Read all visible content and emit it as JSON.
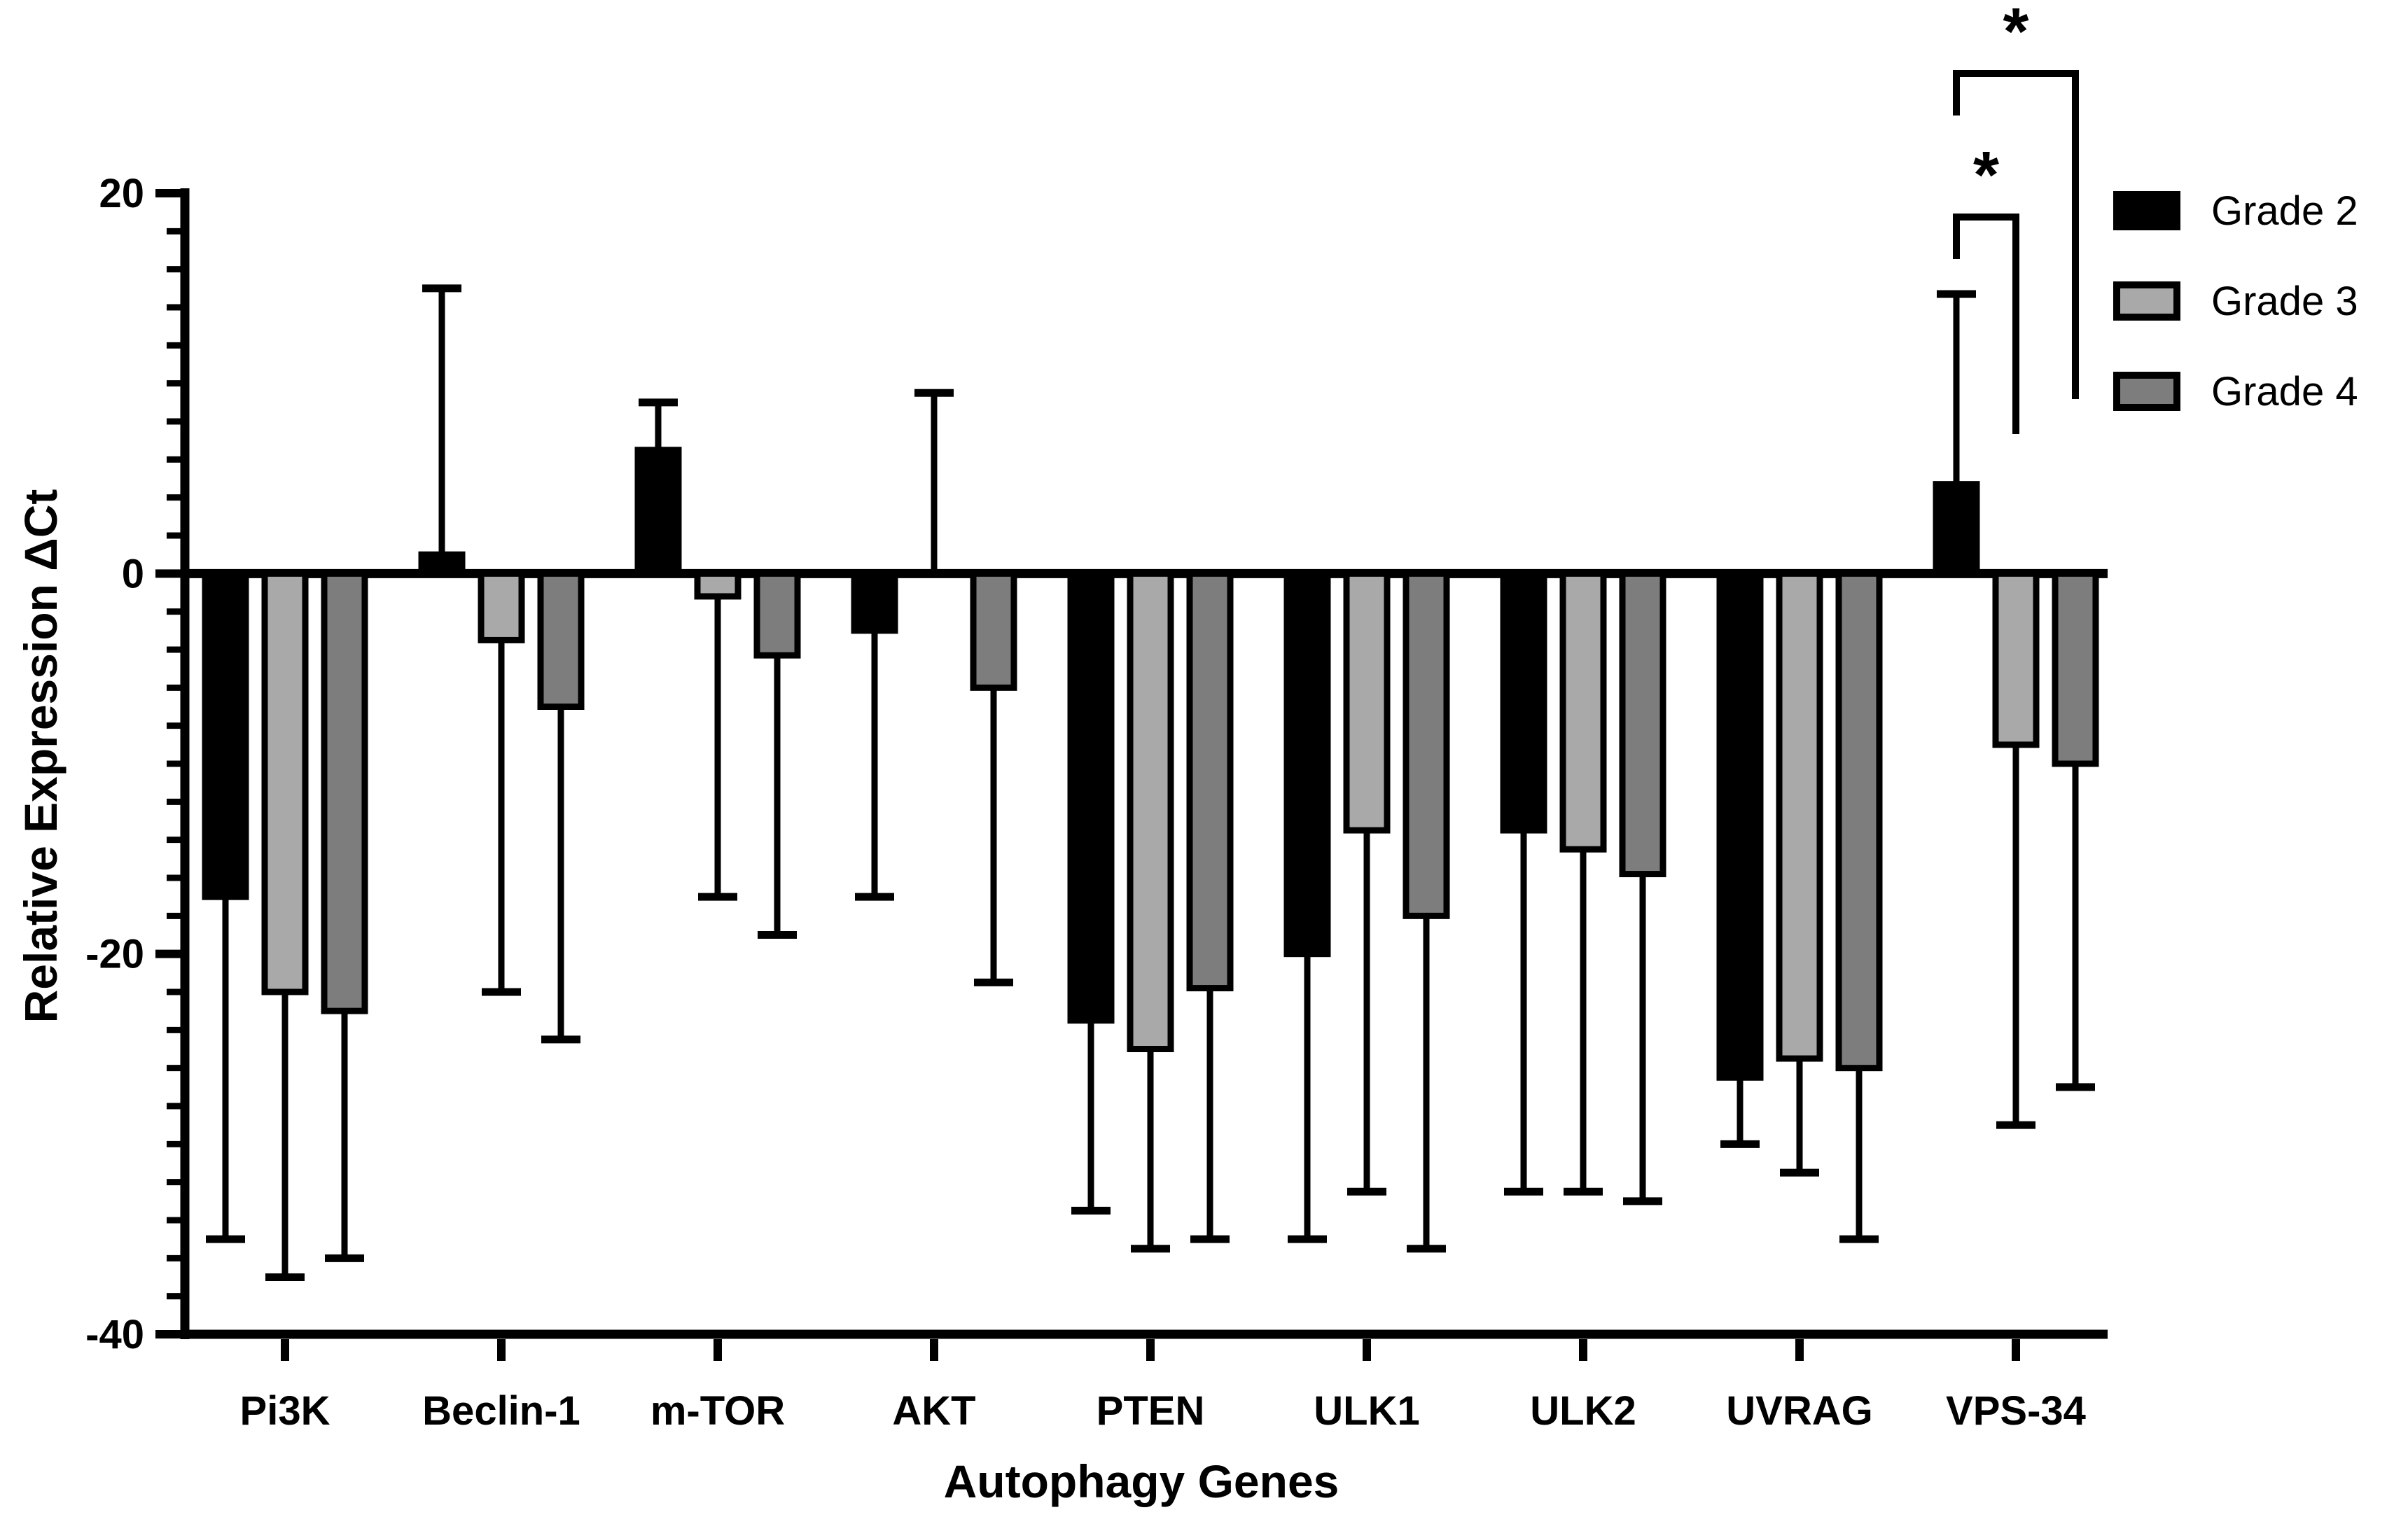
{
  "axes": {
    "y_label": "Relative Expression ΔCt",
    "x_label": "Autophagy Genes",
    "y_tick_labels": [
      "20",
      "0",
      "-20",
      "-40"
    ],
    "y_tick_values": [
      20,
      0,
      -20,
      -40
    ],
    "y_minor_tick_step": 2,
    "ylim": [
      -40,
      20
    ]
  },
  "legend": {
    "items": [
      {
        "label": "Grade 2",
        "fill": "#000000",
        "style": "solid"
      },
      {
        "label": "Grade 3",
        "fill": "#a9a9a9",
        "style": "outlined"
      },
      {
        "label": "Grade 4",
        "fill": "#7d7d7d",
        "style": "outlined"
      }
    ]
  },
  "colors": {
    "axis": "#000000",
    "bar_outline": "#000000",
    "grade2": "#000000",
    "grade3": "#a9a9a9",
    "grade4": "#7d7d7d",
    "background": "#ffffff"
  },
  "chart_data": {
    "type": "bar",
    "title": "",
    "xlabel": "Autophagy Genes",
    "ylabel": "Relative Expression ΔCt",
    "ylim": [
      -40,
      20
    ],
    "grid": false,
    "legend_position": "right-top",
    "categories": [
      "Pi3K",
      "Beclin-1",
      "m-TOR",
      "AKT",
      "PTEN",
      "ULK1",
      "ULK2",
      "UVRAG",
      "VPS-34"
    ],
    "series": [
      {
        "name": "Grade 2",
        "color": "#000000",
        "values": [
          -17,
          1,
          6.5,
          -3,
          -23.5,
          -20,
          -13.5,
          -26.5,
          4.7
        ],
        "error_to": [
          -35,
          15,
          9,
          -17,
          -33.5,
          -35,
          -32.5,
          -30,
          14.7
        ]
      },
      {
        "name": "Grade 3",
        "color": "#a9a9a9",
        "values": [
          -22,
          -3.5,
          -1.2,
          0,
          -25,
          -13.5,
          -14.5,
          -25.5,
          -9
        ],
        "error_to": [
          -37,
          -22,
          -17,
          9.5,
          -35.5,
          -32.5,
          -32.5,
          -31.5,
          -29
        ]
      },
      {
        "name": "Grade 4",
        "color": "#7d7d7d",
        "values": [
          -23,
          -7,
          -4.3,
          -6,
          -21.8,
          -18,
          -15.8,
          -26,
          -10
        ],
        "error_to": [
          -36,
          -24.5,
          -19,
          -21.5,
          -35,
          -35.5,
          -33,
          -35,
          -27
        ]
      }
    ],
    "significance": [
      {
        "label": "*",
        "category": "VPS-34",
        "from_series": "Grade 2",
        "to_series": "Grade 3",
        "level": "inner"
      },
      {
        "label": "*",
        "category": "VPS-34",
        "from_series": "Grade 2",
        "to_series": "Grade 4",
        "level": "outer"
      }
    ]
  }
}
